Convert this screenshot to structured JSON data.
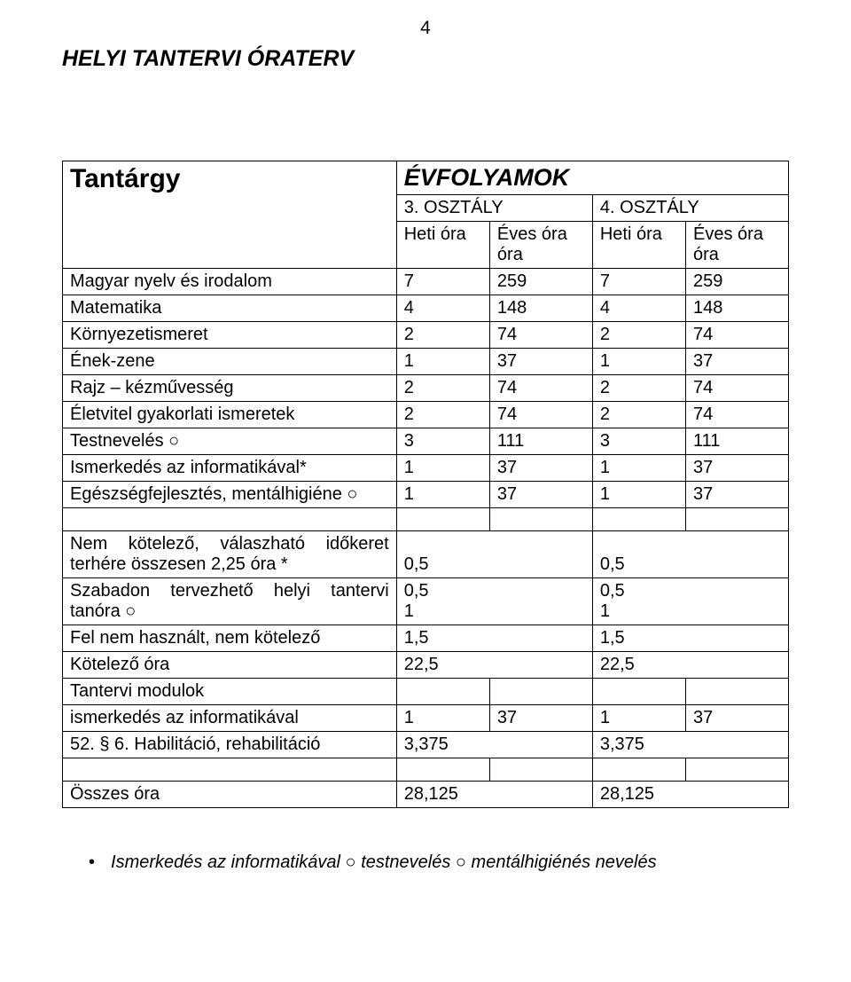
{
  "page_number": "4",
  "title": "HELYI TANTERVI ÓRATERV",
  "table_header": {
    "tantargy": "Tantárgy",
    "evfolyamok": "ÉVFOLYAMOK",
    "osztaly3": "3. OSZTÁLY",
    "osztaly4": "4. OSZTÁLY",
    "heti_ora": "Heti óra",
    "eves_ora": "Éves óra"
  },
  "rows": [
    {
      "label": "Magyar nyelv és irodalom",
      "h1": "7",
      "e1": "259",
      "h2": "7",
      "e2": "259"
    },
    {
      "label": "Matematika",
      "h1": "4",
      "e1": "148",
      "h2": "4",
      "e2": "148"
    },
    {
      "label": "Környezetismeret",
      "h1": "2",
      "e1": "74",
      "h2": "2",
      "e2": "74"
    },
    {
      "label": "Ének-zene",
      "h1": "1",
      "e1": "37",
      "h2": "1",
      "e2": "37"
    },
    {
      "label": "Rajz – kézművesség",
      "h1": "2",
      "e1": "74",
      "h2": "2",
      "e2": "74"
    },
    {
      "label": "Életvitel gyakorlati ismeretek",
      "h1": "2",
      "e1": "74",
      "h2": "2",
      "e2": "74"
    },
    {
      "label": "Testnevelés ○",
      "h1": "3",
      "e1": "111",
      "h2": "3",
      "e2": "111"
    },
    {
      "label": "Ismerkedés az informatikával*",
      "h1": "1",
      "e1": "37",
      "h2": "1",
      "e2": "37"
    },
    {
      "label": "Egészségfejlesztés, mentálhigiéne ○",
      "h1": "1",
      "e1": "37",
      "h2": "1",
      "e2": "37"
    }
  ],
  "group2": {
    "r1_label": "Nem kötelező, válaszható időkeret terhére összesen 2,25 óra *",
    "r1_v1": "0,5",
    "r1_v2": "0,5",
    "r2_label": "Szabadon tervezhető helyi tantervi tanóra ○",
    "r2_v1a": "0,5",
    "r2_v1b": "1",
    "r2_v2a": "0,5",
    "r2_v2b": "1",
    "r3_label": "Fel nem használt, nem kötelező",
    "r3_v1": "1,5",
    "r3_v2": "1,5",
    "r4_label": "Kötelező óra",
    "r4_v1": "22,5",
    "r4_v2": "22,5",
    "r5_label": "Tantervi modulok",
    "r6_label": "ismerkedés az informatikával",
    "r6_h1": "1",
    "r6_e1": "37",
    "r6_h2": "1",
    "r6_e2": "37",
    "r7_label": "52. § 6. Habilitáció, rehabilitáció",
    "r7_v1": "3,375",
    "r7_v2": "3,375"
  },
  "total": {
    "label": "Összes óra",
    "v1": "28,125",
    "v2": "28,125"
  },
  "footnote": "Ismerkedés az informatikával ○ testnevelés ○ mentálhigiénés nevelés"
}
